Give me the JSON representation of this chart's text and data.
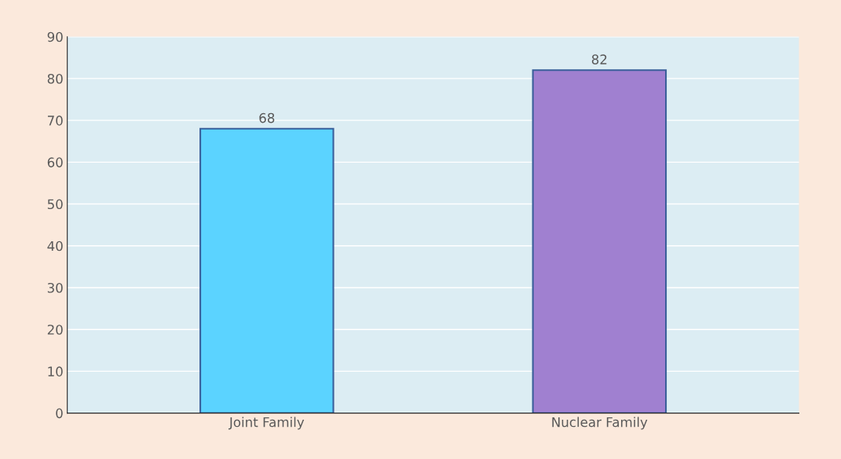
{
  "chart_data": {
    "type": "bar",
    "categories": [
      "Joint Family",
      "Nuclear Family"
    ],
    "values": [
      68,
      82
    ],
    "colors": [
      "#5bd3ff",
      "#a080d0"
    ],
    "ylim": [
      0,
      90
    ],
    "yticks": [
      0,
      10,
      20,
      30,
      40,
      50,
      60,
      70,
      80,
      90
    ],
    "grid": "y",
    "data_labels": true
  }
}
